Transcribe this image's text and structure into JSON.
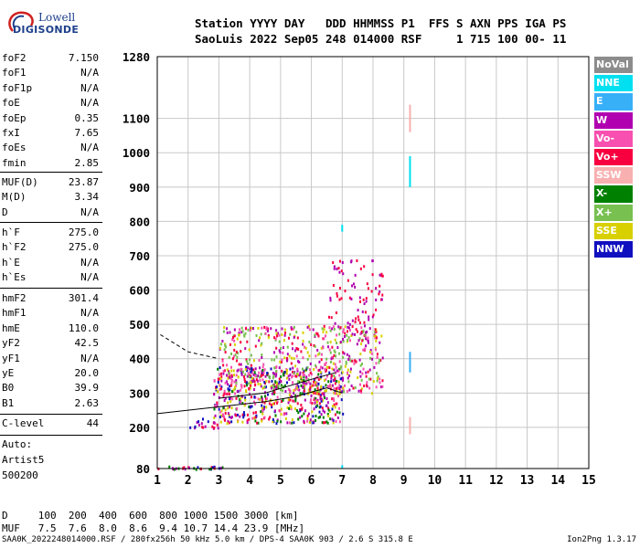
{
  "logo": {
    "line1": "Lowell",
    "line2": "DIGISONDE"
  },
  "header": {
    "line1": "Station YYYY DAY   DDD HHMMSS P1  FFS S AXN PPS IGA PS",
    "line2": "SaoLuis 2022 Sep05 248 014000 RSF     1 715 100 00- 11"
  },
  "params_a": [
    {
      "k": "foF2",
      "v": "7.150"
    },
    {
      "k": "foF1",
      "v": "N/A"
    },
    {
      "k": "foF1p",
      "v": "N/A"
    },
    {
      "k": "foE",
      "v": "N/A"
    },
    {
      "k": "foEp",
      "v": "0.35"
    },
    {
      "k": "fxI",
      "v": "7.65"
    },
    {
      "k": "foEs",
      "v": "N/A"
    },
    {
      "k": "fmin",
      "v": "2.85"
    }
  ],
  "params_b": [
    {
      "k": "MUF(D)",
      "v": "23.87"
    },
    {
      "k": "M(D)",
      "v": "3.34"
    },
    {
      "k": "D",
      "v": "N/A"
    }
  ],
  "params_c": [
    {
      "k": "h`F",
      "v": "275.0"
    },
    {
      "k": "h`F2",
      "v": "275.0"
    },
    {
      "k": "h`E",
      "v": "N/A"
    },
    {
      "k": "h`Es",
      "v": "N/A"
    }
  ],
  "params_d": [
    {
      "k": "hmF2",
      "v": "301.4"
    },
    {
      "k": "hmF1",
      "v": "N/A"
    },
    {
      "k": "hmE",
      "v": "110.0"
    },
    {
      "k": "yF2",
      "v": "42.5"
    },
    {
      "k": "yF1",
      "v": "N/A"
    },
    {
      "k": "yE",
      "v": "20.0"
    },
    {
      "k": "B0",
      "v": "39.9"
    },
    {
      "k": "B1",
      "v": "2.63"
    }
  ],
  "clevel": {
    "k": "C-level",
    "v": "44"
  },
  "auto": {
    "line1": "Auto:",
    "line2": "Artist5",
    "line3": "500200"
  },
  "legend": [
    {
      "label": "NoVal",
      "color": "#8c8c8c"
    },
    {
      "label": "NNE",
      "color": "#00e0f0"
    },
    {
      "label": "E",
      "color": "#38b0f8"
    },
    {
      "label": "W",
      "color": "#b000b0"
    },
    {
      "label": "Vo-",
      "color": "#f850b0"
    },
    {
      "label": "Vo+",
      "color": "#f80040"
    },
    {
      "label": "SSW",
      "color": "#f8b0b0"
    },
    {
      "label": "X-",
      "color": "#008000"
    },
    {
      "label": "X+",
      "color": "#78c050"
    },
    {
      "label": "SSE",
      "color": "#d8d000"
    },
    {
      "label": "NNW",
      "color": "#1010c0"
    }
  ],
  "mufs_table": {
    "line1": "D     100  200  400  600  800 1000 1500 3000 [km]",
    "line2": "MUF   7.5  7.6  8.0  8.6  9.4 10.7 14.4 23.9 [MHz]"
  },
  "footer": {
    "left": "SAA0K_2022248014000.RSF / 280fx256h 50 kHz 5.0 km / DPS-4 SAA0K 903 / 2.6 S 315.8 E",
    "right": "Ion2Png 1.3.17"
  },
  "chart_data": {
    "type": "scatter",
    "title": "",
    "xlabel": "",
    "ylabel": "",
    "xlim": [
      1,
      15
    ],
    "ylim": [
      80,
      1280
    ],
    "x_ticks": [
      1,
      2,
      3,
      4,
      5,
      6,
      7,
      8,
      9,
      10,
      11,
      12,
      13,
      14,
      15
    ],
    "y_ticks": [
      80,
      200,
      300,
      400,
      500,
      600,
      700,
      800,
      900,
      1000,
      1100,
      1280
    ],
    "grid": true,
    "clusters": [
      {
        "name": "E-layer trace",
        "x_range": [
          1.0,
          3.1
        ],
        "y_range": [
          80,
          90
        ],
        "colors": [
          "#1010c0",
          "#f80040",
          "#008000",
          "#b000b0"
        ],
        "density": 0.9
      },
      {
        "name": "F2 trace",
        "x_range": [
          2.8,
          7.0
        ],
        "y_range": [
          215,
          380
        ],
        "colors": [
          "#f80040",
          "#b000b0",
          "#f850b0",
          "#008000",
          "#1010c0",
          "#d8d000"
        ],
        "density": 0.6
      },
      {
        "name": "F2 spread",
        "x_range": [
          3.0,
          8.3
        ],
        "y_range": [
          300,
          500
        ],
        "colors": [
          "#b000b0",
          "#f80040",
          "#f850b0",
          "#d8d000",
          "#78c050"
        ],
        "density": 0.35
      },
      {
        "name": "F2 spread upper",
        "x_range": [
          6.5,
          8.3
        ],
        "y_range": [
          450,
          690
        ],
        "colors": [
          "#b000b0",
          "#f80040"
        ],
        "density": 0.15
      },
      {
        "name": "Oblique echoes",
        "x_range": [
          2.0,
          3.0
        ],
        "y_range": [
          200,
          230
        ],
        "colors": [
          "#1010c0",
          "#b000b0",
          "#f80040"
        ],
        "density": 0.4
      }
    ],
    "spikes": [
      {
        "x": 9.2,
        "y_ranges": [
          [
            1060,
            1140
          ],
          [
            900,
            990
          ],
          [
            360,
            420
          ],
          [
            180,
            230
          ]
        ],
        "colors": [
          "#f8b0b0",
          "#00e0f0",
          "#38b0f8"
        ]
      },
      {
        "x": 7.0,
        "y_ranges": [
          [
            770,
            790
          ],
          [
            80,
            90
          ]
        ],
        "colors": [
          "#00e0f0"
        ]
      }
    ],
    "curves": [
      {
        "name": "profile-solid",
        "style": "solid",
        "x": [
          1.0,
          3.0,
          4.5,
          5.5,
          6.5,
          7.0
        ],
        "y": [
          240,
          260,
          275,
          290,
          315,
          300
        ]
      },
      {
        "name": "profile-dashed",
        "style": "dashed",
        "x": [
          1.1,
          2.0,
          3.0
        ],
        "y": [
          470,
          420,
          400
        ]
      },
      {
        "name": "profile-solid-2",
        "style": "solid",
        "x": [
          3.0,
          4.5,
          6.0,
          6.8
        ],
        "y": [
          285,
          300,
          340,
          360
        ]
      }
    ]
  }
}
